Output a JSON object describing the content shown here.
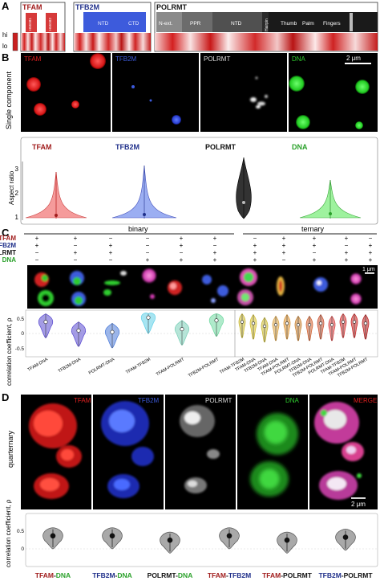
{
  "panel_a": {
    "letter": "A",
    "hi": "hi",
    "lo": "lo",
    "proteins": [
      {
        "name": "TFAM",
        "color": "#a11d1d"
      },
      {
        "name": "TFB2M",
        "color": "#1f2f8a"
      },
      {
        "name": "POLRMT",
        "color": "#111111"
      }
    ],
    "tfam_domains": [
      "HMGB1",
      "HMGB2"
    ],
    "tfb2m_domains": [
      "NTD",
      "CTD"
    ],
    "polrmt_domains": [
      "N-ext.",
      "PPR",
      "NTD",
      "Hairpin",
      "Thumb",
      "Palm",
      "Fingers"
    ]
  },
  "panel_b": {
    "letter": "B",
    "row_label": "Single component",
    "channels": [
      {
        "name": "TFAM",
        "color": "#e02020"
      },
      {
        "name": "TFB2M",
        "color": "#3d5bdc"
      },
      {
        "name": "POLRMT",
        "color": "#dddddd"
      },
      {
        "name": "DNA",
        "color": "#2ecc2e"
      }
    ],
    "scale": "2 μm",
    "plot_labels": [
      {
        "name": "TFAM",
        "color": "#a11d1d"
      },
      {
        "name": "TFB2M",
        "color": "#1f2f8a"
      },
      {
        "name": "POLRMT",
        "color": "#111111"
      },
      {
        "name": "DNA",
        "color": "#2aa12a"
      }
    ],
    "ylabel": "Aspect ratio",
    "yticks": [
      "1",
      "2",
      "3"
    ]
  },
  "panel_c": {
    "letter": "C",
    "binary": "binary",
    "ternary": "ternary",
    "rows": [
      {
        "name": "TFAM",
        "color": "#a11d1d"
      },
      {
        "name": "TFB2M",
        "color": "#1f2f8a"
      },
      {
        "name": "POLRMT",
        "color": "#111111"
      },
      {
        "name": "DNA",
        "color": "#2aa12a"
      }
    ],
    "signs": [
      [
        "+",
        "+",
        "−",
        "−",
        "+",
        "+",
        "−",
        "+",
        "+",
        "+",
        "−"
      ],
      [
        "+",
        "−",
        "+",
        "−",
        "+",
        "−",
        "+",
        "+",
        "+",
        "−",
        "+"
      ],
      [
        "−",
        "+",
        "+",
        "−",
        "−",
        "+",
        "+",
        "+",
        "−",
        "+",
        "+"
      ],
      [
        "−",
        "−",
        "−",
        "+",
        "+",
        "+",
        "+",
        "−",
        "+",
        "+",
        "+"
      ]
    ],
    "scale": "1 μm",
    "ylabel": "correlation coefficient, ρ",
    "yticks": [
      "0.5",
      "0",
      "-0.5"
    ],
    "binary_labels": [
      "TFAM-DNA",
      "TFB2M-DNA",
      "POLRMT-DNA",
      "TFAM-TFB2M",
      "TFAM-POLRMT",
      "TFB2M-POLRMT"
    ],
    "ternary_labels": [
      "TFAM-TFB2M",
      "TFAM-DNA",
      "TFB2M-DNA",
      "TFAM-DNA",
      "TFAM-POLRMT",
      "POLRMT-DNA",
      "TFB2M-DNA",
      "TFB2M-POLRMT",
      "POLRMT-DNA",
      "TFAM-TFB2M",
      "TFAM-POLRMT",
      "TFB2M-POLRMT"
    ]
  },
  "panel_d": {
    "letter": "D",
    "row_label": "quarternary",
    "channels": [
      {
        "name": "TFAM",
        "color": "#e02020"
      },
      {
        "name": "TFB2M",
        "color": "#3d5bdc"
      },
      {
        "name": "POLRMT",
        "color": "#dddddd"
      },
      {
        "name": "DNA",
        "color": "#2ecc2e"
      }
    ],
    "merge": "MERGE",
    "scale": "2 μm",
    "ylabel": "correlation coefficient, ρ",
    "yticks": [
      "0.5",
      "0"
    ],
    "pairs": [
      {
        "a": "TFAM",
        "ac": "#a11d1d",
        "b": "DNA",
        "bc": "#2aa12a"
      },
      {
        "a": "TFB2M",
        "ac": "#1f2f8a",
        "b": "DNA",
        "bc": "#2aa12a"
      },
      {
        "a": "POLRMT",
        "ac": "#111111",
        "b": "DNA",
        "bc": "#2aa12a"
      },
      {
        "a": "TFAM",
        "ac": "#a11d1d",
        "b": "TFB2M",
        "bc": "#1f2f8a"
      },
      {
        "a": "TFAM",
        "ac": "#a11d1d",
        "b": "POLRMT",
        "bc": "#111111"
      },
      {
        "a": "TFB2M",
        "ac": "#1f2f8a",
        "b": "POLRMT",
        "bc": "#111111"
      }
    ]
  },
  "chart_data": [
    {
      "type": "violin",
      "ylabel": "Aspect ratio",
      "ylim": [
        1,
        3
      ],
      "categories": [
        "TFAM",
        "TFB2M",
        "POLRMT",
        "DNA"
      ],
      "median": [
        1.1,
        1.15,
        1.7,
        1.1
      ]
    },
    {
      "type": "violin",
      "ylabel": "correlation coefficient, ρ",
      "ylim": [
        -0.7,
        0.7
      ],
      "categories": [
        "TFAM-DNA",
        "TFB2M-DNA",
        "POLRMT-DNA",
        "TFAM-TFB2M",
        "TFAM-POLRMT",
        "TFB2M-POLRMT",
        "TFAM-TFB2M",
        "TFAM-DNA",
        "TFB2M-DNA",
        "TFAM-DNA",
        "TFAM-POLRMT",
        "POLRMT-DNA",
        "TFB2M-DNA",
        "TFB2M-POLRMT",
        "POLRMT-DNA",
        "TFAM-TFB2M",
        "TFAM-POLRMT",
        "TFB2M-POLRMT"
      ],
      "median": [
        0.4,
        0.1,
        0.05,
        0.55,
        0.15,
        0.45,
        0.4,
        0.35,
        0.25,
        0.3,
        0.35,
        0.3,
        0.3,
        0.35,
        0.3,
        0.4,
        0.4,
        0.35
      ]
    },
    {
      "type": "violin",
      "ylabel": "correlation coefficient, ρ",
      "ylim": [
        -0.2,
        0.75
      ],
      "categories": [
        "TFAM-DNA",
        "TFB2M-DNA",
        "POLRMT-DNA",
        "TFAM-TFB2M",
        "TFAM-POLRMT",
        "TFB2M-POLRMT"
      ],
      "median": [
        0.45,
        0.45,
        0.3,
        0.45,
        0.3,
        0.4
      ]
    }
  ]
}
